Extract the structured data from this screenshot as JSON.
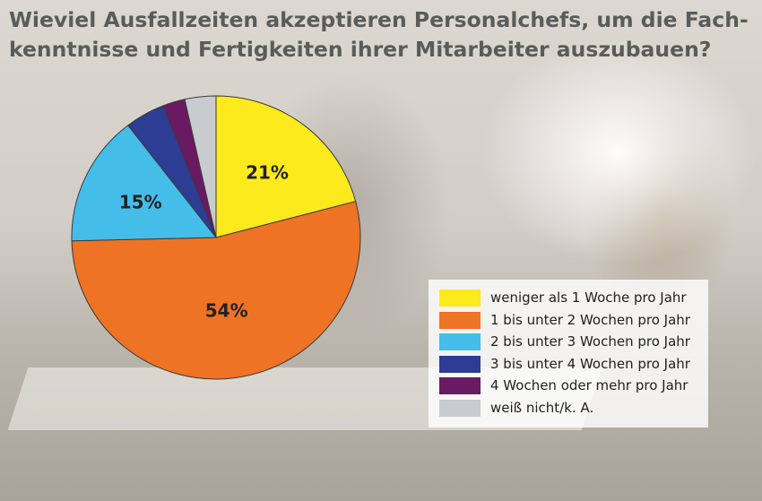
{
  "title_lines": [
    "Wieviel Ausfallzeiten akzeptieren Personalchefs, um die Fach-",
    "kenntnisse und Fertigkeiten ihrer Mitarbeiter auszubauen?"
  ],
  "chart_data": {
    "type": "pie",
    "title": "Wieviel Ausfallzeiten akzeptieren Personalchefs, um die Fach- kenntnisse und Fertigkeiten ihrer Mitarbeiter auszubauen?",
    "legend_position": "bottom-right",
    "slices": [
      {
        "label": "weniger als 1 Woche pro Jahr",
        "value": 21,
        "display": "21%",
        "color": "#fdea1c"
      },
      {
        "label": "1 bis unter 2 Wochen pro Jahr",
        "value": 54,
        "display": "54%",
        "color": "#ee7324"
      },
      {
        "label": "2 bis unter 3 Wochen pro Jahr",
        "value": 15,
        "display": "15%",
        "color": "#45bde9"
      },
      {
        "label": "3 bis unter 4 Wochen pro Jahr",
        "value": 4.5,
        "display": "",
        "color": "#2d3d93"
      },
      {
        "label": "4 Wochen oder mehr pro Jahr",
        "value": 2.5,
        "display": "",
        "color": "#6a1a63"
      },
      {
        "label": "weiß nicht/k. A.",
        "value": 3.5,
        "display": "",
        "color": "#c8cccf"
      }
    ]
  }
}
